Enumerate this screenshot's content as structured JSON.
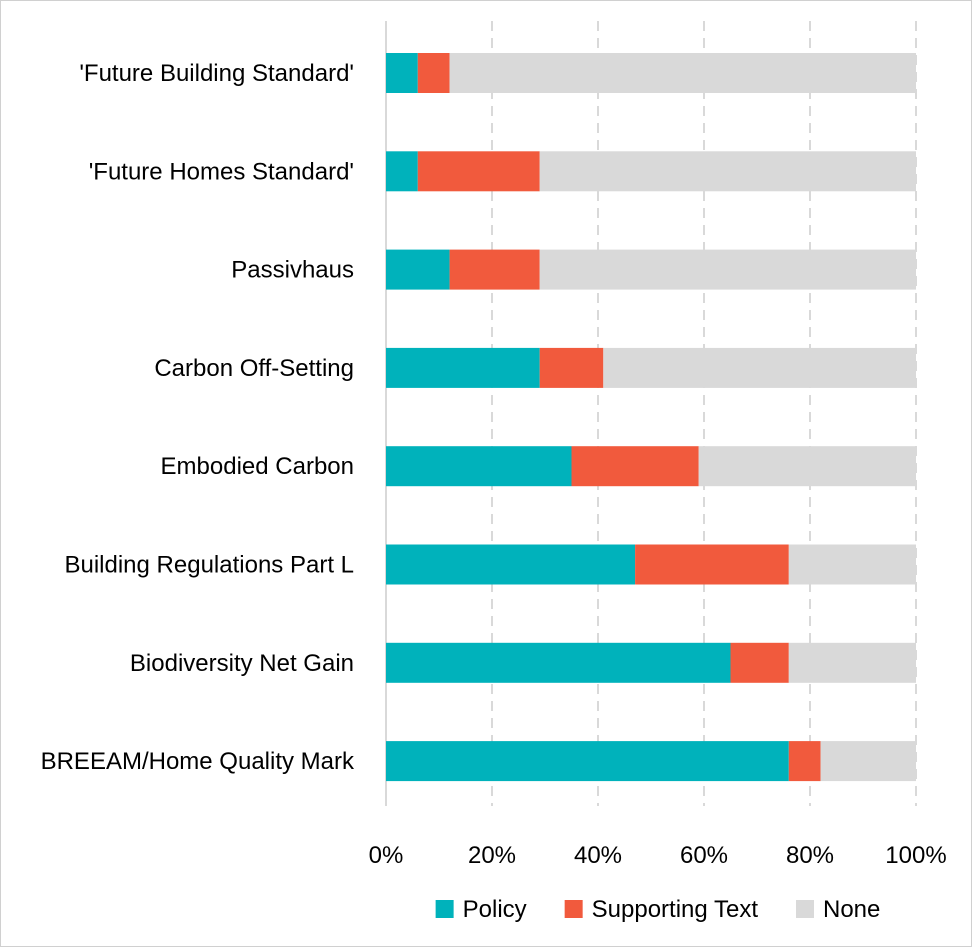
{
  "chart_data": {
    "type": "bar",
    "orientation": "horizontal",
    "stacked": true,
    "percent_scale": true,
    "categories": [
      "'Future Building Standard'",
      "'Future Homes Standard'",
      "Passivhaus",
      "Carbon Off-Setting",
      "Embodied Carbon",
      "Building Regulations Part L",
      "Biodiversity Net Gain",
      "BREEAM/Home Quality Mark"
    ],
    "series": [
      {
        "name": "Policy",
        "color": "#00b2bb",
        "values": [
          6,
          6,
          12,
          29,
          35,
          47,
          65,
          76
        ]
      },
      {
        "name": "Supporting Text",
        "color": "#f15a3d",
        "values": [
          6,
          23,
          17,
          12,
          24,
          29,
          11,
          6
        ]
      },
      {
        "name": "None",
        "color": "#d9d9d9",
        "values": [
          88,
          71,
          71,
          59,
          41,
          24,
          24,
          18
        ]
      }
    ],
    "xlim": [
      0,
      100
    ],
    "xticks": [
      "0%",
      "20%",
      "40%",
      "60%",
      "80%",
      "100%"
    ],
    "grid": true,
    "legend_position": "bottom"
  }
}
